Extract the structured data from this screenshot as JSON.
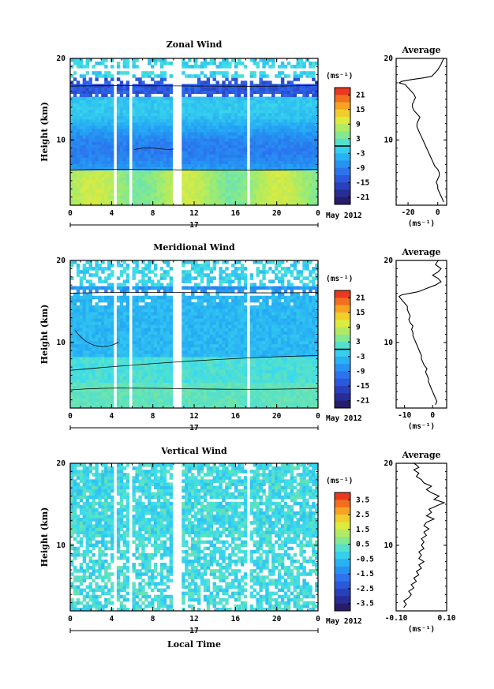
{
  "chart_data": [
    {
      "type": "heatmap",
      "title": "Zonal Wind",
      "ylabel": "Height (km)",
      "xticks": [
        "0",
        "4",
        "8",
        "12",
        "16",
        "20",
        "0"
      ],
      "yticks": [
        "20",
        "10"
      ],
      "date_marker": "17",
      "date_label": "May 2012",
      "xlim": [
        0,
        24
      ],
      "ylim": [
        2,
        20
      ],
      "gaps": [
        [
          4.2,
          4.6
        ],
        [
          5.6,
          5.9
        ],
        [
          9.8,
          10.7
        ],
        [
          17.2,
          17.4
        ]
      ],
      "colorbar": {
        "unit": "(ms⁻¹)",
        "ticks": [
          "21",
          "15",
          "9",
          "3",
          "-3",
          "-9",
          "-15",
          "-21"
        ],
        "range": [
          -24,
          24
        ],
        "zero_line": true
      },
      "profile": {
        "title": "Average",
        "xticks": [
          "-20",
          "0"
        ],
        "yticks": [
          "20",
          "10"
        ],
        "unit": "(ms⁻¹)",
        "xlim": [
          -28,
          6
        ],
        "x": [
          4,
          3,
          2,
          1,
          0,
          0,
          -1,
          0,
          1,
          1,
          0,
          -2,
          -3,
          -4,
          -5,
          -6,
          -7,
          -8,
          -9,
          -10,
          -11,
          -12,
          -13,
          -14,
          -14,
          -13,
          -12,
          -14,
          -16,
          -17,
          -17,
          -16,
          -15,
          -16,
          -18,
          -20,
          -22,
          -26,
          -24,
          -18,
          -10,
          -4,
          -2,
          0,
          2,
          4
        ],
        "y": [
          2.4,
          2.8,
          3.2,
          3.6,
          4.0,
          4.4,
          4.8,
          5.2,
          5.6,
          6.0,
          6.4,
          6.8,
          7.2,
          7.6,
          8.0,
          8.4,
          8.8,
          9.2,
          9.6,
          10.0,
          10.4,
          10.8,
          11.2,
          11.6,
          12.0,
          12.4,
          12.8,
          13.2,
          13.6,
          14.0,
          14.4,
          14.8,
          15.2,
          15.6,
          16.0,
          16.4,
          16.8,
          17.0,
          17.2,
          17.4,
          17.6,
          17.8,
          18.2,
          18.6,
          19.2,
          20.0
        ]
      }
    },
    {
      "type": "heatmap",
      "title": "Meridional Wind",
      "ylabel": "Height (km)",
      "xticks": [
        "0",
        "4",
        "8",
        "12",
        "16",
        "20",
        "0"
      ],
      "yticks": [
        "20",
        "10"
      ],
      "date_marker": "17",
      "date_label": "May 2012",
      "xlim": [
        0,
        24
      ],
      "ylim": [
        2,
        20
      ],
      "gaps": [
        [
          4.2,
          4.6
        ],
        [
          5.6,
          5.9
        ],
        [
          9.8,
          10.7
        ],
        [
          17.2,
          17.4
        ]
      ],
      "colorbar": {
        "unit": "(ms⁻¹)",
        "ticks": [
          "21",
          "15",
          "9",
          "3",
          "-3",
          "-9",
          "-15",
          "-21"
        ],
        "range": [
          -24,
          24
        ],
        "zero_line": true
      },
      "profile": {
        "title": "Average",
        "xticks": [
          "-10",
          "0"
        ],
        "yticks": [
          "20",
          "10"
        ],
        "unit": "(ms⁻¹)",
        "xlim": [
          -13,
          5
        ],
        "x": [
          1,
          1.5,
          1,
          0.5,
          0,
          -0.5,
          -1,
          -1.5,
          -1.5,
          -2,
          -2.5,
          -2,
          -3,
          -3.5,
          -4,
          -4,
          -4.5,
          -5,
          -5.5,
          -6,
          -6.5,
          -7,
          -7,
          -7.5,
          -7,
          -8,
          -8.5,
          -8,
          -8.5,
          -9,
          -9,
          -10,
          -11,
          -12,
          -11,
          -8,
          -5,
          -2,
          1,
          3,
          2,
          0,
          2,
          3,
          1,
          2
        ],
        "y": [
          2.4,
          2.8,
          3.2,
          3.6,
          4.0,
          4.4,
          4.8,
          5.2,
          5.6,
          6.0,
          6.4,
          6.8,
          7.2,
          7.6,
          8.0,
          8.4,
          8.8,
          9.2,
          9.6,
          10.0,
          10.4,
          10.8,
          11.2,
          11.6,
          12.0,
          12.4,
          12.8,
          13.2,
          13.6,
          14.0,
          14.4,
          14.8,
          15.2,
          15.6,
          15.8,
          16.0,
          16.2,
          16.6,
          17.0,
          17.4,
          17.8,
          18.2,
          18.6,
          19.0,
          19.5,
          20.0
        ]
      }
    },
    {
      "type": "heatmap",
      "title": "Vertical Wind",
      "ylabel": "Height (km)",
      "xlabel": "Local Time",
      "xticks": [
        "0",
        "4",
        "8",
        "12",
        "16",
        "20",
        "0"
      ],
      "yticks": [
        "20",
        "10"
      ],
      "date_marker": "17",
      "date_label": "May 2012",
      "xlim": [
        0,
        24
      ],
      "ylim": [
        2,
        20
      ],
      "gaps": [
        [
          4.2,
          4.6
        ],
        [
          5.6,
          5.9
        ],
        [
          9.8,
          10.7
        ],
        [
          17.2,
          17.4
        ]
      ],
      "colorbar": {
        "unit": "(ms⁻¹)",
        "ticks": [
          "3.5",
          "2.5",
          "1.5",
          "0.5",
          "-0.5",
          "-1.5",
          "-2.5",
          "-3.5"
        ],
        "range": [
          -4,
          4
        ],
        "zero_line": false
      },
      "profile": {
        "title": "Average",
        "xticks": [
          "-0.10",
          "0.10"
        ],
        "yticks": [
          "20",
          "10"
        ],
        "unit": "(ms⁻¹)",
        "xlim": [
          -0.1,
          0.1
        ],
        "x": [
          -0.07,
          -0.06,
          -0.07,
          -0.05,
          -0.04,
          -0.05,
          -0.03,
          -0.04,
          -0.02,
          -0.03,
          -0.01,
          -0.02,
          0.0,
          -0.01,
          0.01,
          -0.01,
          0.0,
          -0.01,
          0.01,
          0.0,
          0.01,
          0.0,
          0.02,
          0.01,
          0.03,
          0.01,
          0.02,
          0.05,
          0.02,
          0.04,
          0.03,
          0.06,
          0.09,
          0.05,
          0.07,
          0.04,
          0.02,
          0.04,
          0.01,
          0.0,
          -0.02,
          -0.01,
          -0.03,
          -0.01,
          -0.02,
          -0.03
        ],
        "y": [
          2.4,
          2.8,
          3.2,
          3.6,
          4.0,
          4.4,
          4.8,
          5.2,
          5.6,
          6.0,
          6.4,
          6.8,
          7.2,
          7.6,
          8.0,
          8.4,
          8.8,
          9.2,
          9.6,
          10.0,
          10.4,
          10.8,
          11.2,
          11.6,
          12.0,
          12.4,
          12.8,
          13.2,
          13.6,
          14.0,
          14.4,
          14.8,
          15.2,
          15.6,
          16.0,
          16.4,
          16.8,
          17.2,
          17.6,
          18.0,
          18.4,
          18.8,
          19.2,
          19.5,
          19.8,
          20.0
        ]
      }
    }
  ]
}
